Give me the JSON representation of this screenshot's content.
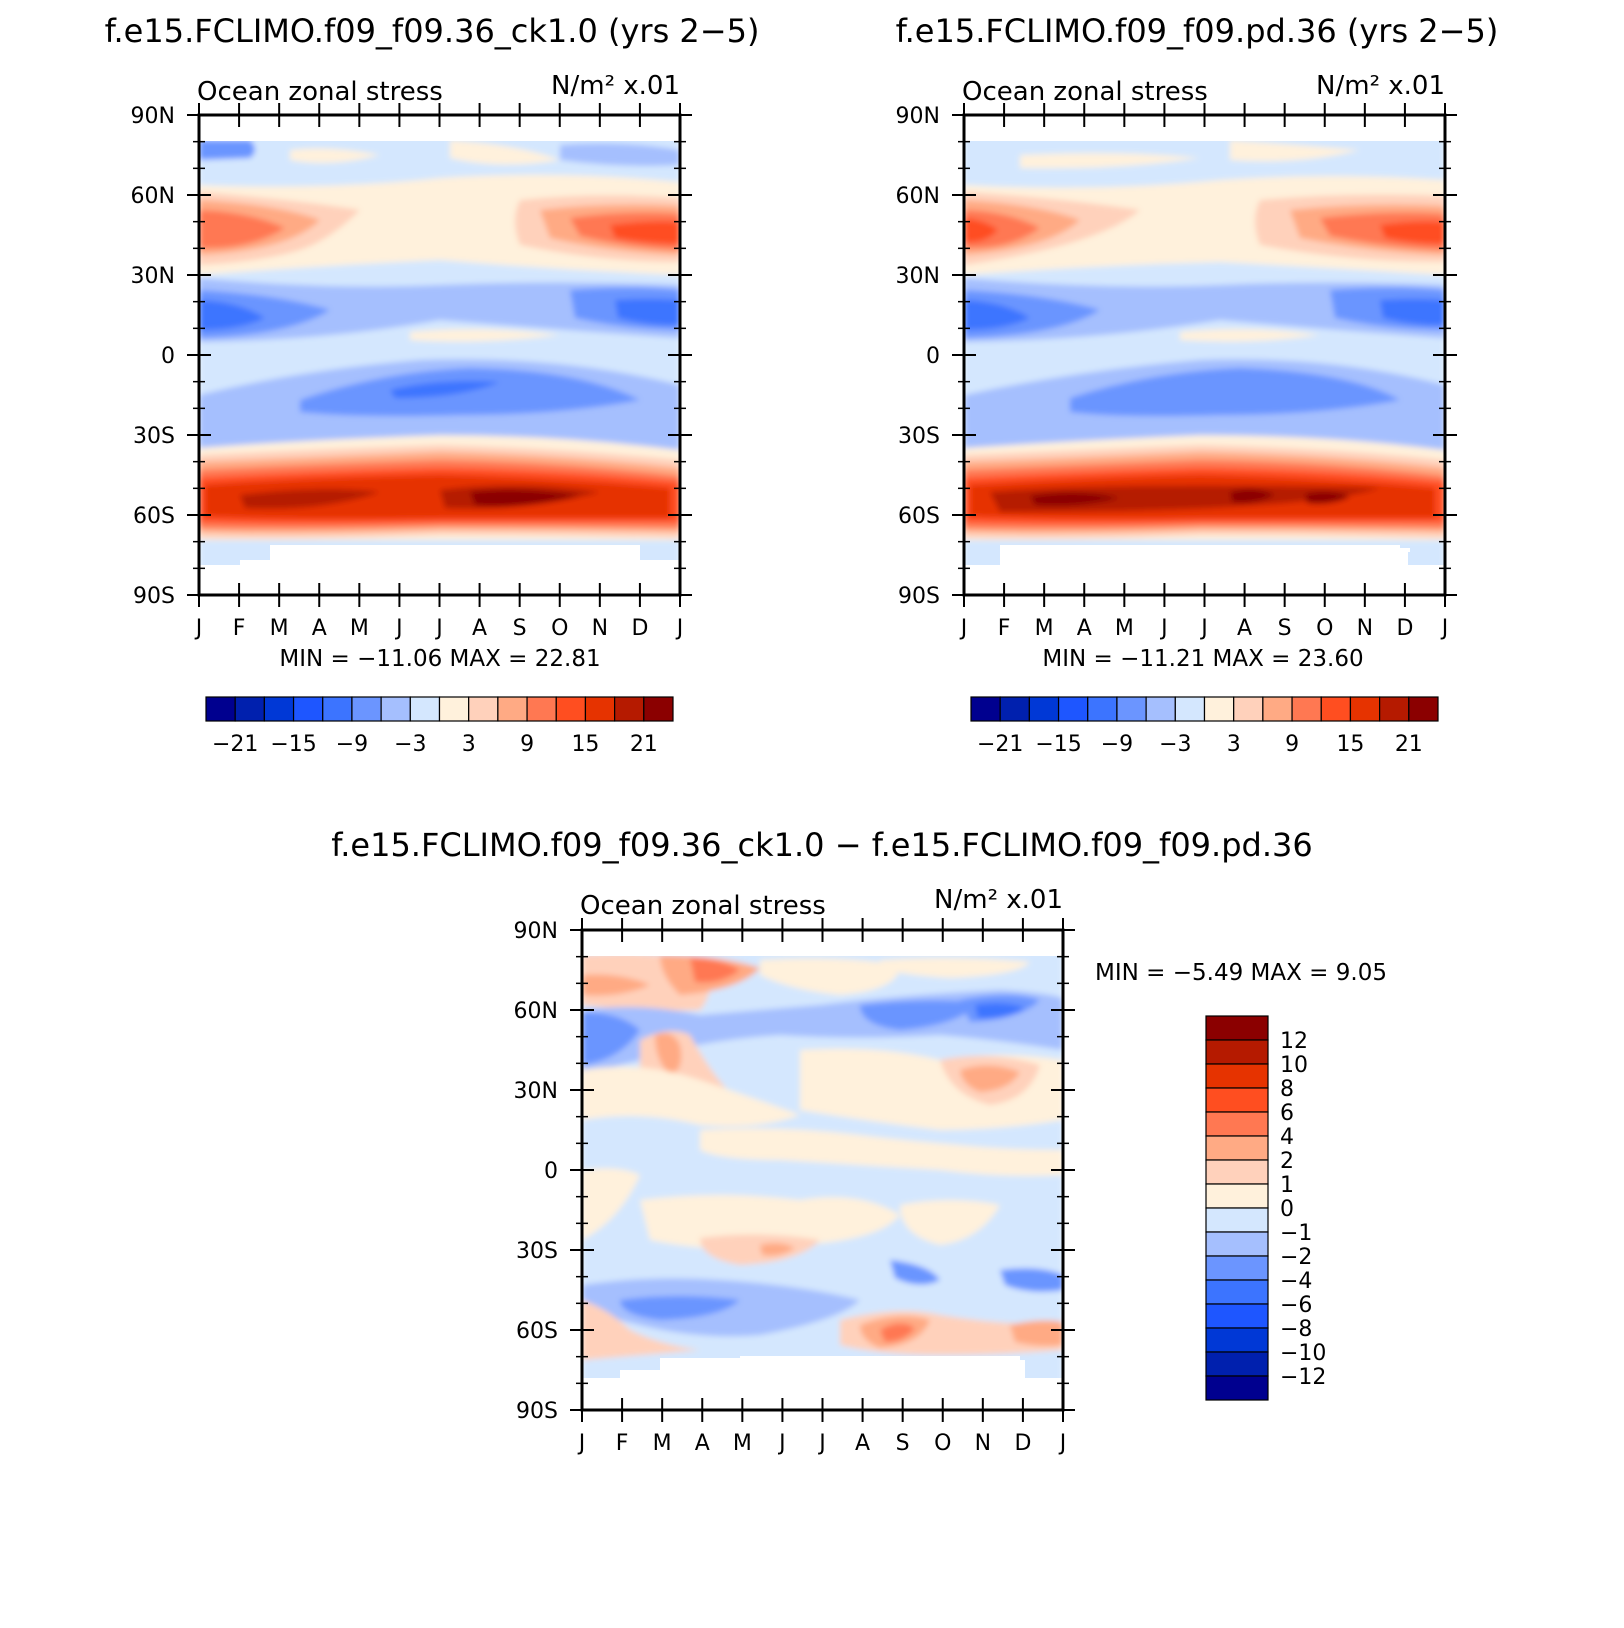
{
  "colors": {
    "blue_red_16": [
      "#00008f",
      "#0020ae",
      "#0038d6",
      "#1e56ff",
      "#3c74ff",
      "#6b95ff",
      "#a5bffe",
      "#d4e7fe",
      "#fff1dc",
      "#ffd1bb",
      "#ffaa84",
      "#ff7852",
      "#ff4e20",
      "#e63300",
      "#b51a00",
      "#8b0000"
    ],
    "diff_14": [
      "#00008f",
      "#0020ae",
      "#0038d6",
      "#1e56ff",
      "#3c74ff",
      "#6b95ff",
      "#a5bffe",
      "#d4e7fe",
      "#fff1dc",
      "#ffd1bb",
      "#ffaa84",
      "#ff7852",
      "#ff4e20",
      "#e63300",
      "#b51a00",
      "#8b0000"
    ]
  },
  "months": [
    "J",
    "F",
    "M",
    "A",
    "M",
    "J",
    "J",
    "A",
    "S",
    "O",
    "N",
    "D",
    "J"
  ],
  "lat_labels": [
    "90N",
    "60N",
    "30N",
    "0",
    "30S",
    "60S",
    "90S"
  ],
  "panel_left": {
    "title": "f.e15.FCLIMO.f09_f09.36_ck1.0 (yrs 2−5)",
    "left_string": "Ocean zonal stress",
    "right_string": "N/m² x.01",
    "minmax": "MIN = −11.06 MAX =   22.81",
    "colorbar_labels": [
      "−21",
      "−15",
      "−9",
      "−3",
      "3",
      "9",
      "15",
      "21"
    ]
  },
  "panel_right": {
    "title": "f.e15.FCLIMO.f09_f09.pd.36 (yrs 2−5)",
    "left_string": "Ocean zonal stress",
    "right_string": "N/m² x.01",
    "minmax": "MIN = −11.21 MAX =   23.60",
    "colorbar_labels": [
      "−21",
      "−15",
      "−9",
      "−3",
      "3",
      "9",
      "15",
      "21"
    ]
  },
  "panel_diff": {
    "title": "f.e15.FCLIMO.f09_f09.36_ck1.0 − f.e15.FCLIMO.f09_f09.pd.36",
    "left_string": "Ocean zonal stress",
    "right_string": "N/m² x.01",
    "minmax": "MIN =   −5.49 MAX =    9.05",
    "colorbar_labels": [
      "12",
      "10",
      "8",
      "6",
      "4",
      "2",
      "1",
      "0",
      "−1",
      "−2",
      "−4",
      "−6",
      "−8",
      "−10",
      "−12"
    ]
  },
  "chart_data": [
    {
      "type": "heatmap",
      "title": "f.e15.FCLIMO.f09_f09.36_ck1.0 (yrs 2−5)",
      "variable": "Ocean zonal stress",
      "units": "N/m² x.01",
      "x": [
        "J",
        "F",
        "M",
        "A",
        "M",
        "J",
        "J",
        "A",
        "S",
        "O",
        "N",
        "D",
        "J"
      ],
      "y": [
        "90N",
        "60N",
        "30N",
        "0",
        "30S",
        "60S",
        "90S"
      ],
      "ylim": [
        -90,
        90
      ],
      "min": -11.06,
      "max": 22.81,
      "contour_levels": [
        -21,
        -18,
        -15,
        -12,
        -9,
        -6,
        -3,
        0,
        3,
        6,
        9,
        12,
        15,
        18,
        21
      ],
      "zonal_features": [
        {
          "lat": 73,
          "value": -2
        },
        {
          "lat": 45,
          "value": 9
        },
        {
          "lat": 15,
          "value": -6
        },
        {
          "lat": 6,
          "value": 1
        },
        {
          "lat": -15,
          "value": -6
        },
        {
          "lat": -55,
          "value": 19
        }
      ]
    },
    {
      "type": "heatmap",
      "title": "f.e15.FCLIMO.f09_f09.pd.36 (yrs 2−5)",
      "variable": "Ocean zonal stress",
      "units": "N/m² x.01",
      "x": [
        "J",
        "F",
        "M",
        "A",
        "M",
        "J",
        "J",
        "A",
        "S",
        "O",
        "N",
        "D",
        "J"
      ],
      "y": [
        "90N",
        "60N",
        "30N",
        "0",
        "30S",
        "60S",
        "90S"
      ],
      "ylim": [
        -90,
        90
      ],
      "min": -11.21,
      "max": 23.6,
      "contour_levels": [
        -21,
        -18,
        -15,
        -12,
        -9,
        -6,
        -3,
        0,
        3,
        6,
        9,
        12,
        15,
        18,
        21
      ],
      "zonal_features": [
        {
          "lat": 73,
          "value": -2
        },
        {
          "lat": 45,
          "value": 9
        },
        {
          "lat": 15,
          "value": -6
        },
        {
          "lat": 6,
          "value": 1
        },
        {
          "lat": -15,
          "value": -5
        },
        {
          "lat": -55,
          "value": 20
        }
      ]
    },
    {
      "type": "heatmap",
      "title": "f.e15.FCLIMO.f09_f09.36_ck1.0 − f.e15.FCLIMO.f09_f09.pd.36",
      "variable": "Ocean zonal stress",
      "units": "N/m² x.01",
      "x": [
        "J",
        "F",
        "M",
        "A",
        "M",
        "J",
        "J",
        "A",
        "S",
        "O",
        "N",
        "D",
        "J"
      ],
      "y": [
        "90N",
        "60N",
        "30N",
        "0",
        "30S",
        "60S",
        "90S"
      ],
      "ylim": [
        -90,
        90
      ],
      "min": -5.49,
      "max": 9.05,
      "contour_levels": [
        -12,
        -10,
        -8,
        -6,
        -4,
        -2,
        -1,
        0,
        1,
        2,
        4,
        6,
        8,
        10,
        12
      ]
    }
  ]
}
